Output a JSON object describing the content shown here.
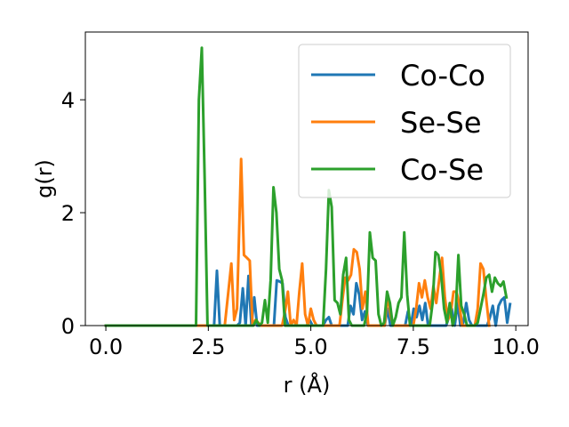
{
  "chart_data": {
    "type": "line",
    "title": "",
    "xlabel": "r (Å)",
    "ylabel": "g(r)",
    "xlim": [
      -0.5,
      10.3
    ],
    "ylim": [
      0,
      5.2
    ],
    "xticks": [
      0.0,
      2.5,
      5.0,
      7.5,
      10.0
    ],
    "xtick_labels": [
      "0.0",
      "2.5",
      "5.0",
      "7.5",
      "10.0"
    ],
    "yticks": [
      0,
      2,
      4
    ],
    "ytick_labels": [
      "0",
      "2",
      "4"
    ],
    "grid": false,
    "legend_position": "upper right",
    "series": [
      {
        "name": "Co-Co",
        "color": "#1f77b4",
        "points": [
          [
            0,
            0
          ],
          [
            2.2,
            0
          ],
          [
            2.64,
            0
          ],
          [
            2.71,
            0.97
          ],
          [
            2.78,
            0
          ],
          [
            3.2,
            0
          ],
          [
            3.27,
            0.05
          ],
          [
            3.34,
            0.66
          ],
          [
            3.41,
            0
          ],
          [
            3.48,
            0.88
          ],
          [
            3.55,
            0
          ],
          [
            3.62,
            0.5
          ],
          [
            3.69,
            0
          ],
          [
            4.1,
            0
          ],
          [
            4.17,
            0.8
          ],
          [
            4.24,
            0.78
          ],
          [
            4.31,
            0.75
          ],
          [
            4.38,
            0.15
          ],
          [
            4.45,
            0
          ],
          [
            4.9,
            0
          ],
          [
            4.97,
            0.1
          ],
          [
            5.04,
            0.0
          ],
          [
            5.3,
            0
          ],
          [
            5.37,
            0.1
          ],
          [
            5.44,
            0.15
          ],
          [
            5.51,
            0.0
          ],
          [
            5.9,
            0
          ],
          [
            5.97,
            0.35
          ],
          [
            6.04,
            0.2
          ],
          [
            6.11,
            0.75
          ],
          [
            6.18,
            0.55
          ],
          [
            6.25,
            0.1
          ],
          [
            6.32,
            0.25
          ],
          [
            6.39,
            0.0
          ],
          [
            6.8,
            0
          ],
          [
            6.87,
            0.3
          ],
          [
            6.94,
            0.0
          ],
          [
            7.3,
            0
          ],
          [
            7.37,
            0.25
          ],
          [
            7.44,
            0.0
          ],
          [
            7.51,
            0.3
          ],
          [
            7.58,
            0.15
          ],
          [
            7.65,
            0.35
          ],
          [
            7.72,
            0.1
          ],
          [
            7.79,
            0.4
          ],
          [
            7.86,
            0.0
          ],
          [
            8.3,
            0
          ],
          [
            8.37,
            0.15
          ],
          [
            8.44,
            0.3
          ],
          [
            8.51,
            0.0
          ],
          [
            8.58,
            0.4
          ],
          [
            8.65,
            0.0
          ],
          [
            8.72,
            0.05
          ],
          [
            8.79,
            0.4
          ],
          [
            8.86,
            0.1
          ],
          [
            8.93,
            0.0
          ],
          [
            9.3,
            0
          ],
          [
            9.37,
            0.15
          ],
          [
            9.44,
            0.35
          ],
          [
            9.51,
            0.0
          ],
          [
            9.58,
            0.35
          ],
          [
            9.65,
            0.45
          ],
          [
            9.72,
            0.5
          ],
          [
            9.79,
            0.05
          ],
          [
            9.86,
            0.38
          ]
        ]
      },
      {
        "name": "Se-Se",
        "color": "#ff7f0e",
        "points": [
          [
            0,
            0
          ],
          [
            2.9,
            0
          ],
          [
            3.06,
            1.1
          ],
          [
            3.13,
            0.1
          ],
          [
            3.2,
            0.3
          ],
          [
            3.3,
            2.95
          ],
          [
            3.37,
            1.25
          ],
          [
            3.44,
            1.2
          ],
          [
            3.51,
            1.15
          ],
          [
            3.58,
            0.0
          ],
          [
            3.65,
            0.1
          ],
          [
            3.72,
            0.05
          ],
          [
            3.79,
            0.0
          ],
          [
            4.3,
            0
          ],
          [
            4.37,
            0.25
          ],
          [
            4.44,
            0.6
          ],
          [
            4.51,
            0.0
          ],
          [
            4.58,
            0.1
          ],
          [
            4.65,
            0.0
          ],
          [
            4.72,
            0.6
          ],
          [
            4.79,
            1.1
          ],
          [
            4.86,
            0.2
          ],
          [
            4.93,
            0.0
          ],
          [
            5.0,
            0.3
          ],
          [
            5.07,
            0.1
          ],
          [
            5.14,
            0.0
          ],
          [
            5.7,
            0
          ],
          [
            5.77,
            0.45
          ],
          [
            5.84,
            0.85
          ],
          [
            5.91,
            0.8
          ],
          [
            5.98,
            0.9
          ],
          [
            6.05,
            1.35
          ],
          [
            6.12,
            1.3
          ],
          [
            6.19,
            1.0
          ],
          [
            6.26,
            0.3
          ],
          [
            6.33,
            0.6
          ],
          [
            6.4,
            0.0
          ],
          [
            6.8,
            0
          ],
          [
            6.87,
            0.55
          ],
          [
            6.94,
            0.2
          ],
          [
            7.01,
            0.0
          ],
          [
            7.5,
            0
          ],
          [
            7.57,
            0.3
          ],
          [
            7.64,
            0.75
          ],
          [
            7.71,
            0.5
          ],
          [
            7.78,
            0.8
          ],
          [
            7.85,
            0.5
          ],
          [
            7.92,
            0.3
          ],
          [
            7.99,
            0.7
          ],
          [
            8.06,
            0.4
          ],
          [
            8.13,
            0.8
          ],
          [
            8.2,
            1.2
          ],
          [
            8.27,
            0.5
          ],
          [
            8.34,
            0.1
          ],
          [
            8.41,
            0.2
          ],
          [
            8.48,
            0.6
          ],
          [
            8.55,
            0.6
          ],
          [
            8.62,
            0.4
          ],
          [
            8.69,
            0.0
          ],
          [
            9.0,
            0
          ],
          [
            9.07,
            0.3
          ],
          [
            9.14,
            1.1
          ],
          [
            9.21,
            1.0
          ],
          [
            9.28,
            0.45
          ],
          [
            9.35,
            0.0
          ]
        ]
      },
      {
        "name": "Co-Se",
        "color": "#2ca02c",
        "points": [
          [
            0,
            0
          ],
          [
            2.2,
            0
          ],
          [
            2.27,
            4.0
          ],
          [
            2.34,
            4.92
          ],
          [
            2.41,
            2.6
          ],
          [
            2.48,
            0.0
          ],
          [
            3.6,
            0
          ],
          [
            3.67,
            0.1
          ],
          [
            3.74,
            0.0
          ],
          [
            3.81,
            0.05
          ],
          [
            3.88,
            0.45
          ],
          [
            3.95,
            0.05
          ],
          [
            4.02,
            0.8
          ],
          [
            4.09,
            2.45
          ],
          [
            4.16,
            2.0
          ],
          [
            4.23,
            1.0
          ],
          [
            4.3,
            0.8
          ],
          [
            4.37,
            0.0
          ],
          [
            5.3,
            0
          ],
          [
            5.37,
            1.0
          ],
          [
            5.44,
            2.4
          ],
          [
            5.51,
            2.1
          ],
          [
            5.58,
            0.45
          ],
          [
            5.65,
            0.4
          ],
          [
            5.72,
            0.2
          ],
          [
            5.79,
            0.9
          ],
          [
            5.86,
            1.2
          ],
          [
            5.93,
            0.1
          ],
          [
            6.0,
            0.0
          ],
          [
            6.3,
            0
          ],
          [
            6.37,
            0.25
          ],
          [
            6.44,
            1.65
          ],
          [
            6.51,
            1.2
          ],
          [
            6.58,
            1.15
          ],
          [
            6.65,
            0.2
          ],
          [
            6.72,
            0.0
          ],
          [
            6.79,
            0.05
          ],
          [
            6.86,
            0.6
          ],
          [
            6.93,
            0.4
          ],
          [
            7.0,
            0.0
          ],
          [
            7.07,
            0.15
          ],
          [
            7.14,
            0.4
          ],
          [
            7.21,
            0.5
          ],
          [
            7.28,
            1.65
          ],
          [
            7.35,
            0.55
          ],
          [
            7.42,
            0.0
          ],
          [
            7.9,
            0
          ],
          [
            7.97,
            0.4
          ],
          [
            8.04,
            1.3
          ],
          [
            8.11,
            1.25
          ],
          [
            8.18,
            0.9
          ],
          [
            8.25,
            0.3
          ],
          [
            8.32,
            0.05
          ],
          [
            8.39,
            0.4
          ],
          [
            8.46,
            0.0
          ],
          [
            8.53,
            0.2
          ],
          [
            8.6,
            1.25
          ],
          [
            8.67,
            0.35
          ],
          [
            8.74,
            0.2
          ],
          [
            8.81,
            0.0
          ],
          [
            9.0,
            0
          ],
          [
            9.07,
            0.05
          ],
          [
            9.14,
            0.3
          ],
          [
            9.21,
            0.55
          ],
          [
            9.28,
            0.85
          ],
          [
            9.35,
            0.9
          ],
          [
            9.42,
            0.6
          ],
          [
            9.49,
            0.85
          ],
          [
            9.56,
            0.75
          ],
          [
            9.63,
            0.7
          ],
          [
            9.7,
            0.78
          ],
          [
            9.77,
            0.5
          ]
        ]
      }
    ]
  }
}
